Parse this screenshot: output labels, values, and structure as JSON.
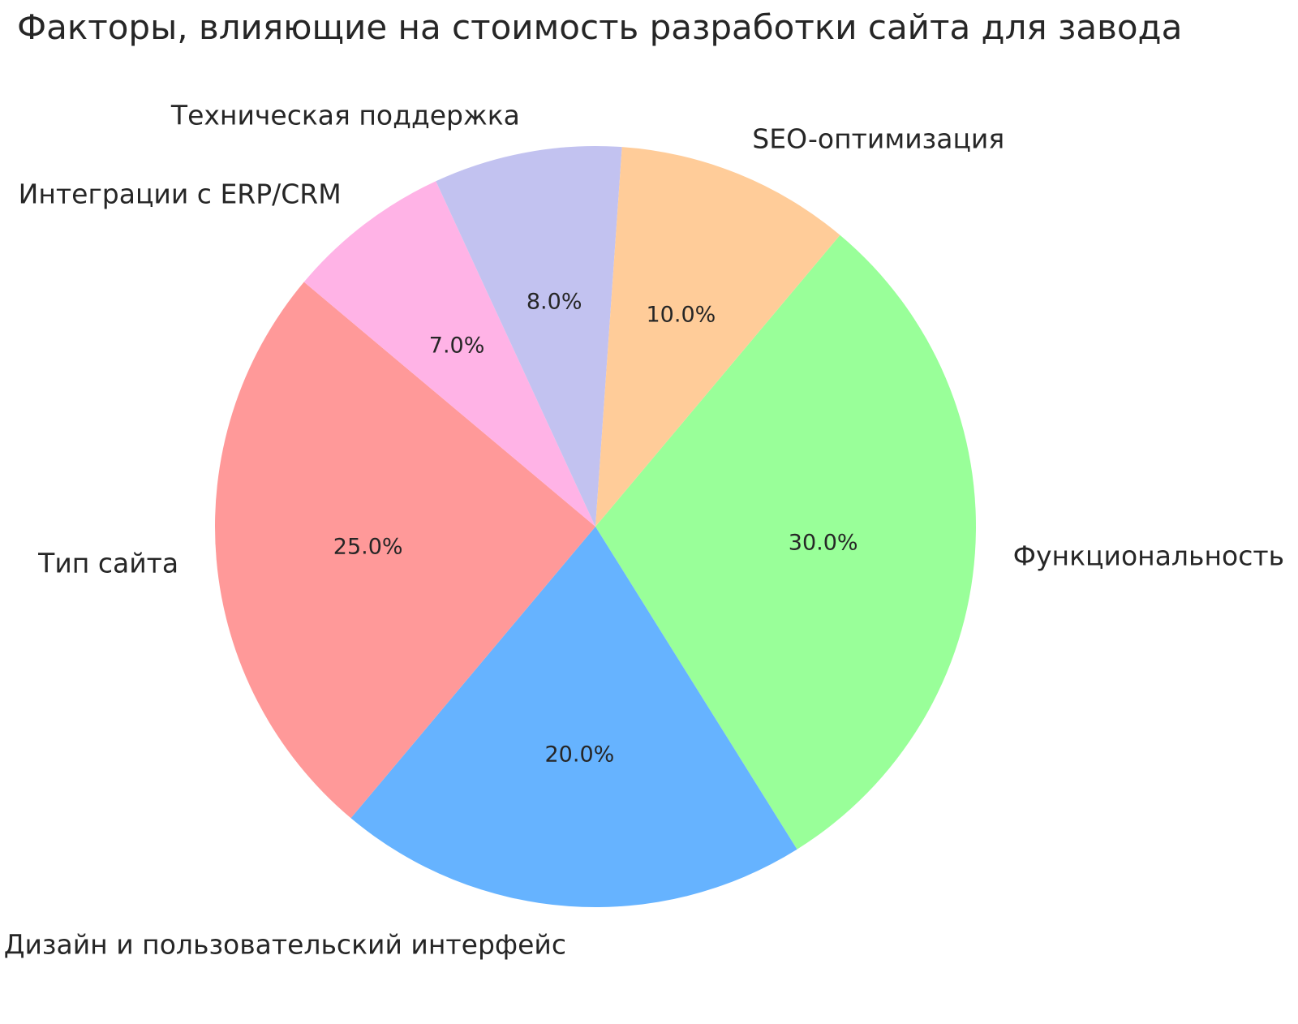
{
  "title": "Факторы, влияющие на стоимость разработки сайта для завода",
  "chart_data": {
    "type": "pie",
    "title": "Факторы, влияющие на стоимость разработки сайта для завода",
    "legend": "none",
    "background": "#ffffff",
    "text_color": "#262626",
    "start_angle": 50,
    "clockwise": true,
    "label_distance": 1.1,
    "pct_distance": 0.6,
    "slices": [
      {
        "label": "Функциональность",
        "value": 30.0,
        "pct_label": "30.0%",
        "color": "#99ff99"
      },
      {
        "label": "Дизайн и пользовательский интерфейс",
        "value": 20.0,
        "pct_label": "20.0%",
        "color": "#66b3ff"
      },
      {
        "label": "Тип сайта",
        "value": 25.0,
        "pct_label": "25.0%",
        "color": "#ff9999"
      },
      {
        "label": "Интеграции с ERP/CRM",
        "value": 7.0,
        "pct_label": "7.0%",
        "color": "#ffb3e6"
      },
      {
        "label": "Техническая поддержка",
        "value": 8.0,
        "pct_label": "8.0%",
        "color": "#c2c2f0"
      },
      {
        "label": "SEO-оптимизация",
        "value": 10.0,
        "pct_label": "10.0%",
        "color": "#ffcc99"
      }
    ]
  }
}
